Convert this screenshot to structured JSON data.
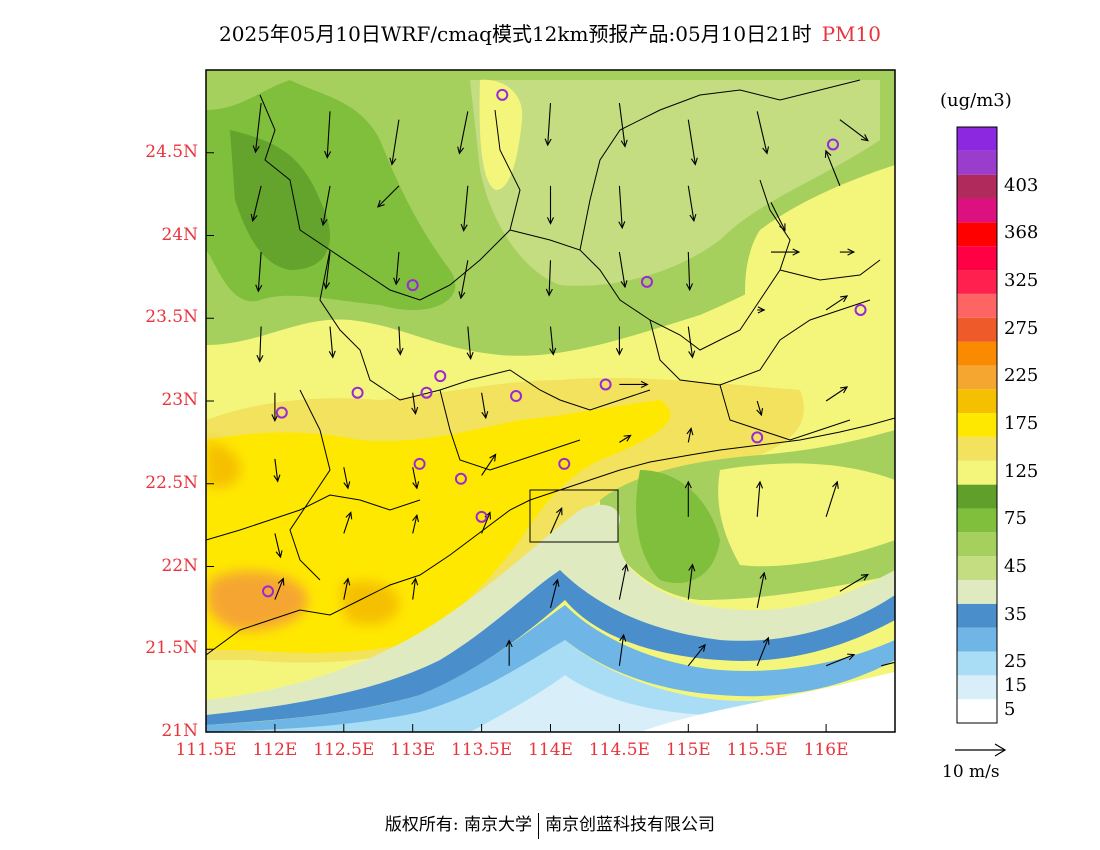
{
  "title": {
    "main": "2025年05月10日WRF/cmaq模式12km预报产品:05月10日21时",
    "variable": "PM10"
  },
  "map": {
    "lat_range": [
      21,
      25
    ],
    "lon_range": [
      111.5,
      116.5
    ],
    "lat_ticks": [
      "24.5N",
      "24N",
      "23.5N",
      "23N",
      "22.5N",
      "22N",
      "21.5N",
      "21N"
    ],
    "lon_ticks": [
      "111.5E",
      "112E",
      "112.5E",
      "113E",
      "113.5E",
      "114E",
      "114.5E",
      "115E",
      "115.5E",
      "116E"
    ],
    "land_color": "#9acd50",
    "sea_color": "#d8eef8"
  },
  "colorbar": {
    "units": "(ug/m3)",
    "colors": [
      "#ffffff",
      "#d8eef8",
      "#a8ddf5",
      "#6fb6e6",
      "#4a8fcb",
      "#dfeac0",
      "#c3dd80",
      "#a6d05e",
      "#7fbf3c",
      "#5f9f2a",
      "#f4f67c",
      "#f2e25e",
      "#ffe800",
      "#f5c000",
      "#f5a630",
      "#fa8a00",
      "#ee5a2a",
      "#ff6464",
      "#ff2050",
      "#ff0044",
      "#ff0000",
      "#dd1080",
      "#b02a5c",
      "#9a3ccc",
      "#8c28e0"
    ],
    "labels": [
      {
        "text": "403",
        "index": 22
      },
      {
        "text": "368",
        "index": 20
      },
      {
        "text": "325",
        "index": 18
      },
      {
        "text": "275",
        "index": 16
      },
      {
        "text": "225",
        "index": 14
      },
      {
        "text": "175",
        "index": 12
      },
      {
        "text": "125",
        "index": 10
      },
      {
        "text": "75",
        "index": 8
      },
      {
        "text": "45",
        "index": 6
      },
      {
        "text": "35",
        "index": 4
      },
      {
        "text": "25",
        "index": 2
      },
      {
        "text": "15",
        "index": 1
      },
      {
        "text": "5",
        "index": 0
      }
    ]
  },
  "reference_vector": {
    "label": "10 m/s"
  },
  "stations": [
    {
      "lon": 113.65,
      "lat": 24.85
    },
    {
      "lon": 116.05,
      "lat": 24.55
    },
    {
      "lon": 113.0,
      "lat": 23.7
    },
    {
      "lon": 114.7,
      "lat": 23.72
    },
    {
      "lon": 116.25,
      "lat": 23.55
    },
    {
      "lon": 112.6,
      "lat": 23.05
    },
    {
      "lon": 113.1,
      "lat": 23.05
    },
    {
      "lon": 113.2,
      "lat": 23.15
    },
    {
      "lon": 113.75,
      "lat": 23.03
    },
    {
      "lon": 114.4,
      "lat": 23.1
    },
    {
      "lon": 112.05,
      "lat": 22.93
    },
    {
      "lon": 115.5,
      "lat": 22.78
    },
    {
      "lon": 113.05,
      "lat": 22.62
    },
    {
      "lon": 113.35,
      "lat": 22.53
    },
    {
      "lon": 114.1,
      "lat": 22.62
    },
    {
      "lon": 113.5,
      "lat": 22.3
    },
    {
      "lon": 111.95,
      "lat": 21.85
    }
  ],
  "wind": [
    {
      "lon": 111.9,
      "lat": 24.8,
      "u": -0.4,
      "v": -3.5
    },
    {
      "lon": 112.4,
      "lat": 24.75,
      "u": -0.2,
      "v": -3.3
    },
    {
      "lon": 112.9,
      "lat": 24.7,
      "u": -0.5,
      "v": -3.2
    },
    {
      "lon": 113.4,
      "lat": 24.75,
      "u": -0.6,
      "v": -3.0
    },
    {
      "lon": 114.0,
      "lat": 24.8,
      "u": -0.2,
      "v": -3.0
    },
    {
      "lon": 114.5,
      "lat": 24.8,
      "u": 0.4,
      "v": -3.1
    },
    {
      "lon": 115.0,
      "lat": 24.7,
      "u": 0.5,
      "v": -3.2
    },
    {
      "lon": 115.5,
      "lat": 24.75,
      "u": 0.7,
      "v": -3.0
    },
    {
      "lon": 116.1,
      "lat": 24.7,
      "u": 2.0,
      "v": -1.5
    },
    {
      "lon": 111.9,
      "lat": 24.3,
      "u": -0.6,
      "v": -2.5
    },
    {
      "lon": 112.4,
      "lat": 24.3,
      "u": -0.5,
      "v": -2.8
    },
    {
      "lon": 112.9,
      "lat": 24.3,
      "u": -1.5,
      "v": -1.5
    },
    {
      "lon": 113.4,
      "lat": 24.3,
      "u": -0.3,
      "v": -3.2
    },
    {
      "lon": 114.0,
      "lat": 24.3,
      "u": 0.0,
      "v": -2.7
    },
    {
      "lon": 114.5,
      "lat": 24.3,
      "u": 0.2,
      "v": -3.0
    },
    {
      "lon": 115.0,
      "lat": 24.3,
      "u": 0.4,
      "v": -2.5
    },
    {
      "lon": 115.6,
      "lat": 24.2,
      "u": 1.0,
      "v": -2.0
    },
    {
      "lon": 116.1,
      "lat": 24.3,
      "u": -1.0,
      "v": 2.5
    },
    {
      "lon": 111.9,
      "lat": 23.9,
      "u": -0.2,
      "v": -2.8
    },
    {
      "lon": 112.4,
      "lat": 23.9,
      "u": -0.3,
      "v": -2.6
    },
    {
      "lon": 112.9,
      "lat": 23.9,
      "u": -0.2,
      "v": -2.3
    },
    {
      "lon": 113.4,
      "lat": 23.85,
      "u": -0.5,
      "v": -2.7
    },
    {
      "lon": 114.0,
      "lat": 23.85,
      "u": -0.1,
      "v": -2.5
    },
    {
      "lon": 114.5,
      "lat": 23.9,
      "u": 0.4,
      "v": -2.5
    },
    {
      "lon": 115.0,
      "lat": 23.9,
      "u": 0.1,
      "v": -2.7
    },
    {
      "lon": 115.6,
      "lat": 23.9,
      "u": 2.0,
      "v": 0.0
    },
    {
      "lon": 116.1,
      "lat": 23.9,
      "u": 1.0,
      "v": 0.0
    },
    {
      "lon": 111.9,
      "lat": 23.45,
      "u": -0.1,
      "v": -2.5
    },
    {
      "lon": 112.4,
      "lat": 23.45,
      "u": 0.2,
      "v": -2.2
    },
    {
      "lon": 112.9,
      "lat": 23.45,
      "u": 0.1,
      "v": -2.0
    },
    {
      "lon": 113.4,
      "lat": 23.45,
      "u": 0.2,
      "v": -2.3
    },
    {
      "lon": 114.0,
      "lat": 23.45,
      "u": 0.2,
      "v": -2.0
    },
    {
      "lon": 114.5,
      "lat": 23.45,
      "u": 0.0,
      "v": -2.0
    },
    {
      "lon": 115.0,
      "lat": 23.45,
      "u": 0.3,
      "v": -2.2
    },
    {
      "lon": 115.5,
      "lat": 23.55,
      "u": 0.5,
      "v": 0.0
    },
    {
      "lon": 116.0,
      "lat": 23.55,
      "u": 1.5,
      "v": 1.0
    },
    {
      "lon": 112.0,
      "lat": 23.05,
      "u": 0.0,
      "v": -2.0
    },
    {
      "lon": 113.0,
      "lat": 23.05,
      "u": 0.2,
      "v": -1.5
    },
    {
      "lon": 113.5,
      "lat": 23.05,
      "u": 0.3,
      "v": -1.8
    },
    {
      "lon": 114.5,
      "lat": 23.1,
      "u": 2.0,
      "v": 0.0
    },
    {
      "lon": 115.5,
      "lat": 23.0,
      "u": 0.3,
      "v": -1.0
    },
    {
      "lon": 116.0,
      "lat": 23.0,
      "u": 1.5,
      "v": 1.0
    },
    {
      "lon": 112.0,
      "lat": 22.65,
      "u": 0.2,
      "v": -1.6
    },
    {
      "lon": 112.5,
      "lat": 22.6,
      "u": 0.3,
      "v": -1.5
    },
    {
      "lon": 113.0,
      "lat": 22.6,
      "u": 0.3,
      "v": -1.5
    },
    {
      "lon": 113.5,
      "lat": 22.55,
      "u": 1.0,
      "v": 1.5
    },
    {
      "lon": 114.5,
      "lat": 22.75,
      "u": 0.8,
      "v": 0.5
    },
    {
      "lon": 115.0,
      "lat": 22.75,
      "u": 0.2,
      "v": 1.0
    },
    {
      "lon": 112.0,
      "lat": 22.2,
      "u": 0.4,
      "v": -1.7
    },
    {
      "lon": 112.5,
      "lat": 22.2,
      "u": 0.5,
      "v": 1.5
    },
    {
      "lon": 113.0,
      "lat": 22.2,
      "u": 0.3,
      "v": 1.3
    },
    {
      "lon": 113.5,
      "lat": 22.2,
      "u": 0.6,
      "v": 1.5
    },
    {
      "lon": 114.0,
      "lat": 22.2,
      "u": 0.8,
      "v": 1.8
    },
    {
      "lon": 115.0,
      "lat": 22.3,
      "u": 0.0,
      "v": 2.5
    },
    {
      "lon": 115.5,
      "lat": 22.3,
      "u": 0.2,
      "v": 2.5
    },
    {
      "lon": 116.0,
      "lat": 22.3,
      "u": 0.8,
      "v": 2.5
    },
    {
      "lon": 112.0,
      "lat": 21.8,
      "u": 0.6,
      "v": 1.5
    },
    {
      "lon": 112.5,
      "lat": 21.8,
      "u": 0.3,
      "v": 1.5
    },
    {
      "lon": 113.0,
      "lat": 21.8,
      "u": 0.2,
      "v": 1.5
    },
    {
      "lon": 114.0,
      "lat": 21.75,
      "u": 0.5,
      "v": 2.0
    },
    {
      "lon": 114.5,
      "lat": 21.8,
      "u": 0.5,
      "v": 2.5
    },
    {
      "lon": 115.0,
      "lat": 21.8,
      "u": 0.3,
      "v": 2.5
    },
    {
      "lon": 115.5,
      "lat": 21.75,
      "u": 0.5,
      "v": 2.5
    },
    {
      "lon": 116.1,
      "lat": 21.85,
      "u": 2.0,
      "v": 1.2
    },
    {
      "lon": 113.7,
      "lat": 21.4,
      "u": 0.0,
      "v": 1.8
    },
    {
      "lon": 114.5,
      "lat": 21.4,
      "u": 0.3,
      "v": 2.2
    },
    {
      "lon": 115.0,
      "lat": 21.4,
      "u": 1.2,
      "v": 1.5
    },
    {
      "lon": 115.5,
      "lat": 21.4,
      "u": 0.8,
      "v": 2.0
    },
    {
      "lon": 116.0,
      "lat": 21.4,
      "u": 2.0,
      "v": 0.8
    },
    {
      "lon": 116.4,
      "lat": 21.4,
      "u": 2.0,
      "v": 0.5
    }
  ],
  "copyright": {
    "prefix": "版权所有: 南京大学",
    "suffix": "南京创蓝科技有限公司"
  }
}
